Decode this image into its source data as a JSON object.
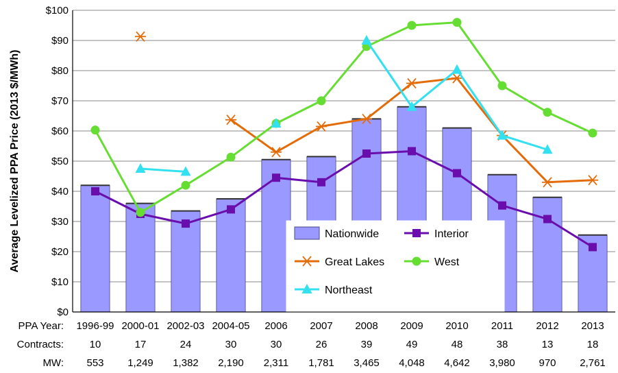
{
  "chart_data": {
    "type": "bar",
    "ylabel": "Average Levelized PPA Price (2013 $/MWh)",
    "ylim": [
      0,
      100
    ],
    "yticks": [
      0,
      10,
      20,
      30,
      40,
      50,
      60,
      70,
      80,
      90,
      100
    ],
    "ytick_prefix": "$",
    "grid": true,
    "categories": [
      "1996-99",
      "2000-01",
      "2002-03",
      "2004-05",
      "2006",
      "2007",
      "2008",
      "2009",
      "2010",
      "2011",
      "2012",
      "2013"
    ],
    "bar_series": {
      "name": "Nationwide",
      "color": "#9999ff",
      "values": [
        42,
        36,
        33.5,
        37.5,
        50.5,
        51.5,
        64,
        68,
        61,
        45.5,
        38,
        25.5
      ]
    },
    "line_series": [
      {
        "name": "Interior",
        "color": "#6a0dad",
        "marker": "square",
        "values": [
          40,
          32.5,
          29.3,
          34,
          44.5,
          43,
          52.5,
          53.3,
          46,
          35.3,
          30.8,
          21.5
        ]
      },
      {
        "name": "Great Lakes",
        "color": "#e36c09",
        "marker": "star",
        "values": [
          null,
          91.3,
          null,
          63.7,
          53,
          61.5,
          64,
          75.8,
          77.5,
          58.5,
          43,
          43.7
        ]
      },
      {
        "name": "West",
        "color": "#66dd33",
        "marker": "circle",
        "values": [
          60.3,
          33,
          42,
          51.3,
          62.5,
          70,
          88,
          95,
          96,
          75,
          66.2,
          59.3
        ]
      },
      {
        "name": "Northeast",
        "color": "#33e0f0",
        "marker": "triangle",
        "values": [
          null,
          47.5,
          46.5,
          null,
          62.5,
          null,
          90,
          68,
          80.3,
          58.5,
          53.8,
          null
        ]
      }
    ],
    "legend_placement": "inside-bottom-right",
    "rows": [
      {
        "label": "PPA Year:",
        "values": [
          "1996-99",
          "2000-01",
          "2002-03",
          "2004-05",
          "2006",
          "2007",
          "2008",
          "2009",
          "2010",
          "2011",
          "2012",
          "2013"
        ]
      },
      {
        "label": "Contracts:",
        "values": [
          "10",
          "17",
          "24",
          "30",
          "30",
          "26",
          "39",
          "49",
          "48",
          "38",
          "13",
          "18"
        ]
      },
      {
        "label": "MW:",
        "values": [
          "553",
          "1,249",
          "1,382",
          "2,190",
          "2,311",
          "1,781",
          "3,465",
          "4,048",
          "4,642",
          "3,980",
          "970",
          "2,761"
        ]
      }
    ]
  }
}
